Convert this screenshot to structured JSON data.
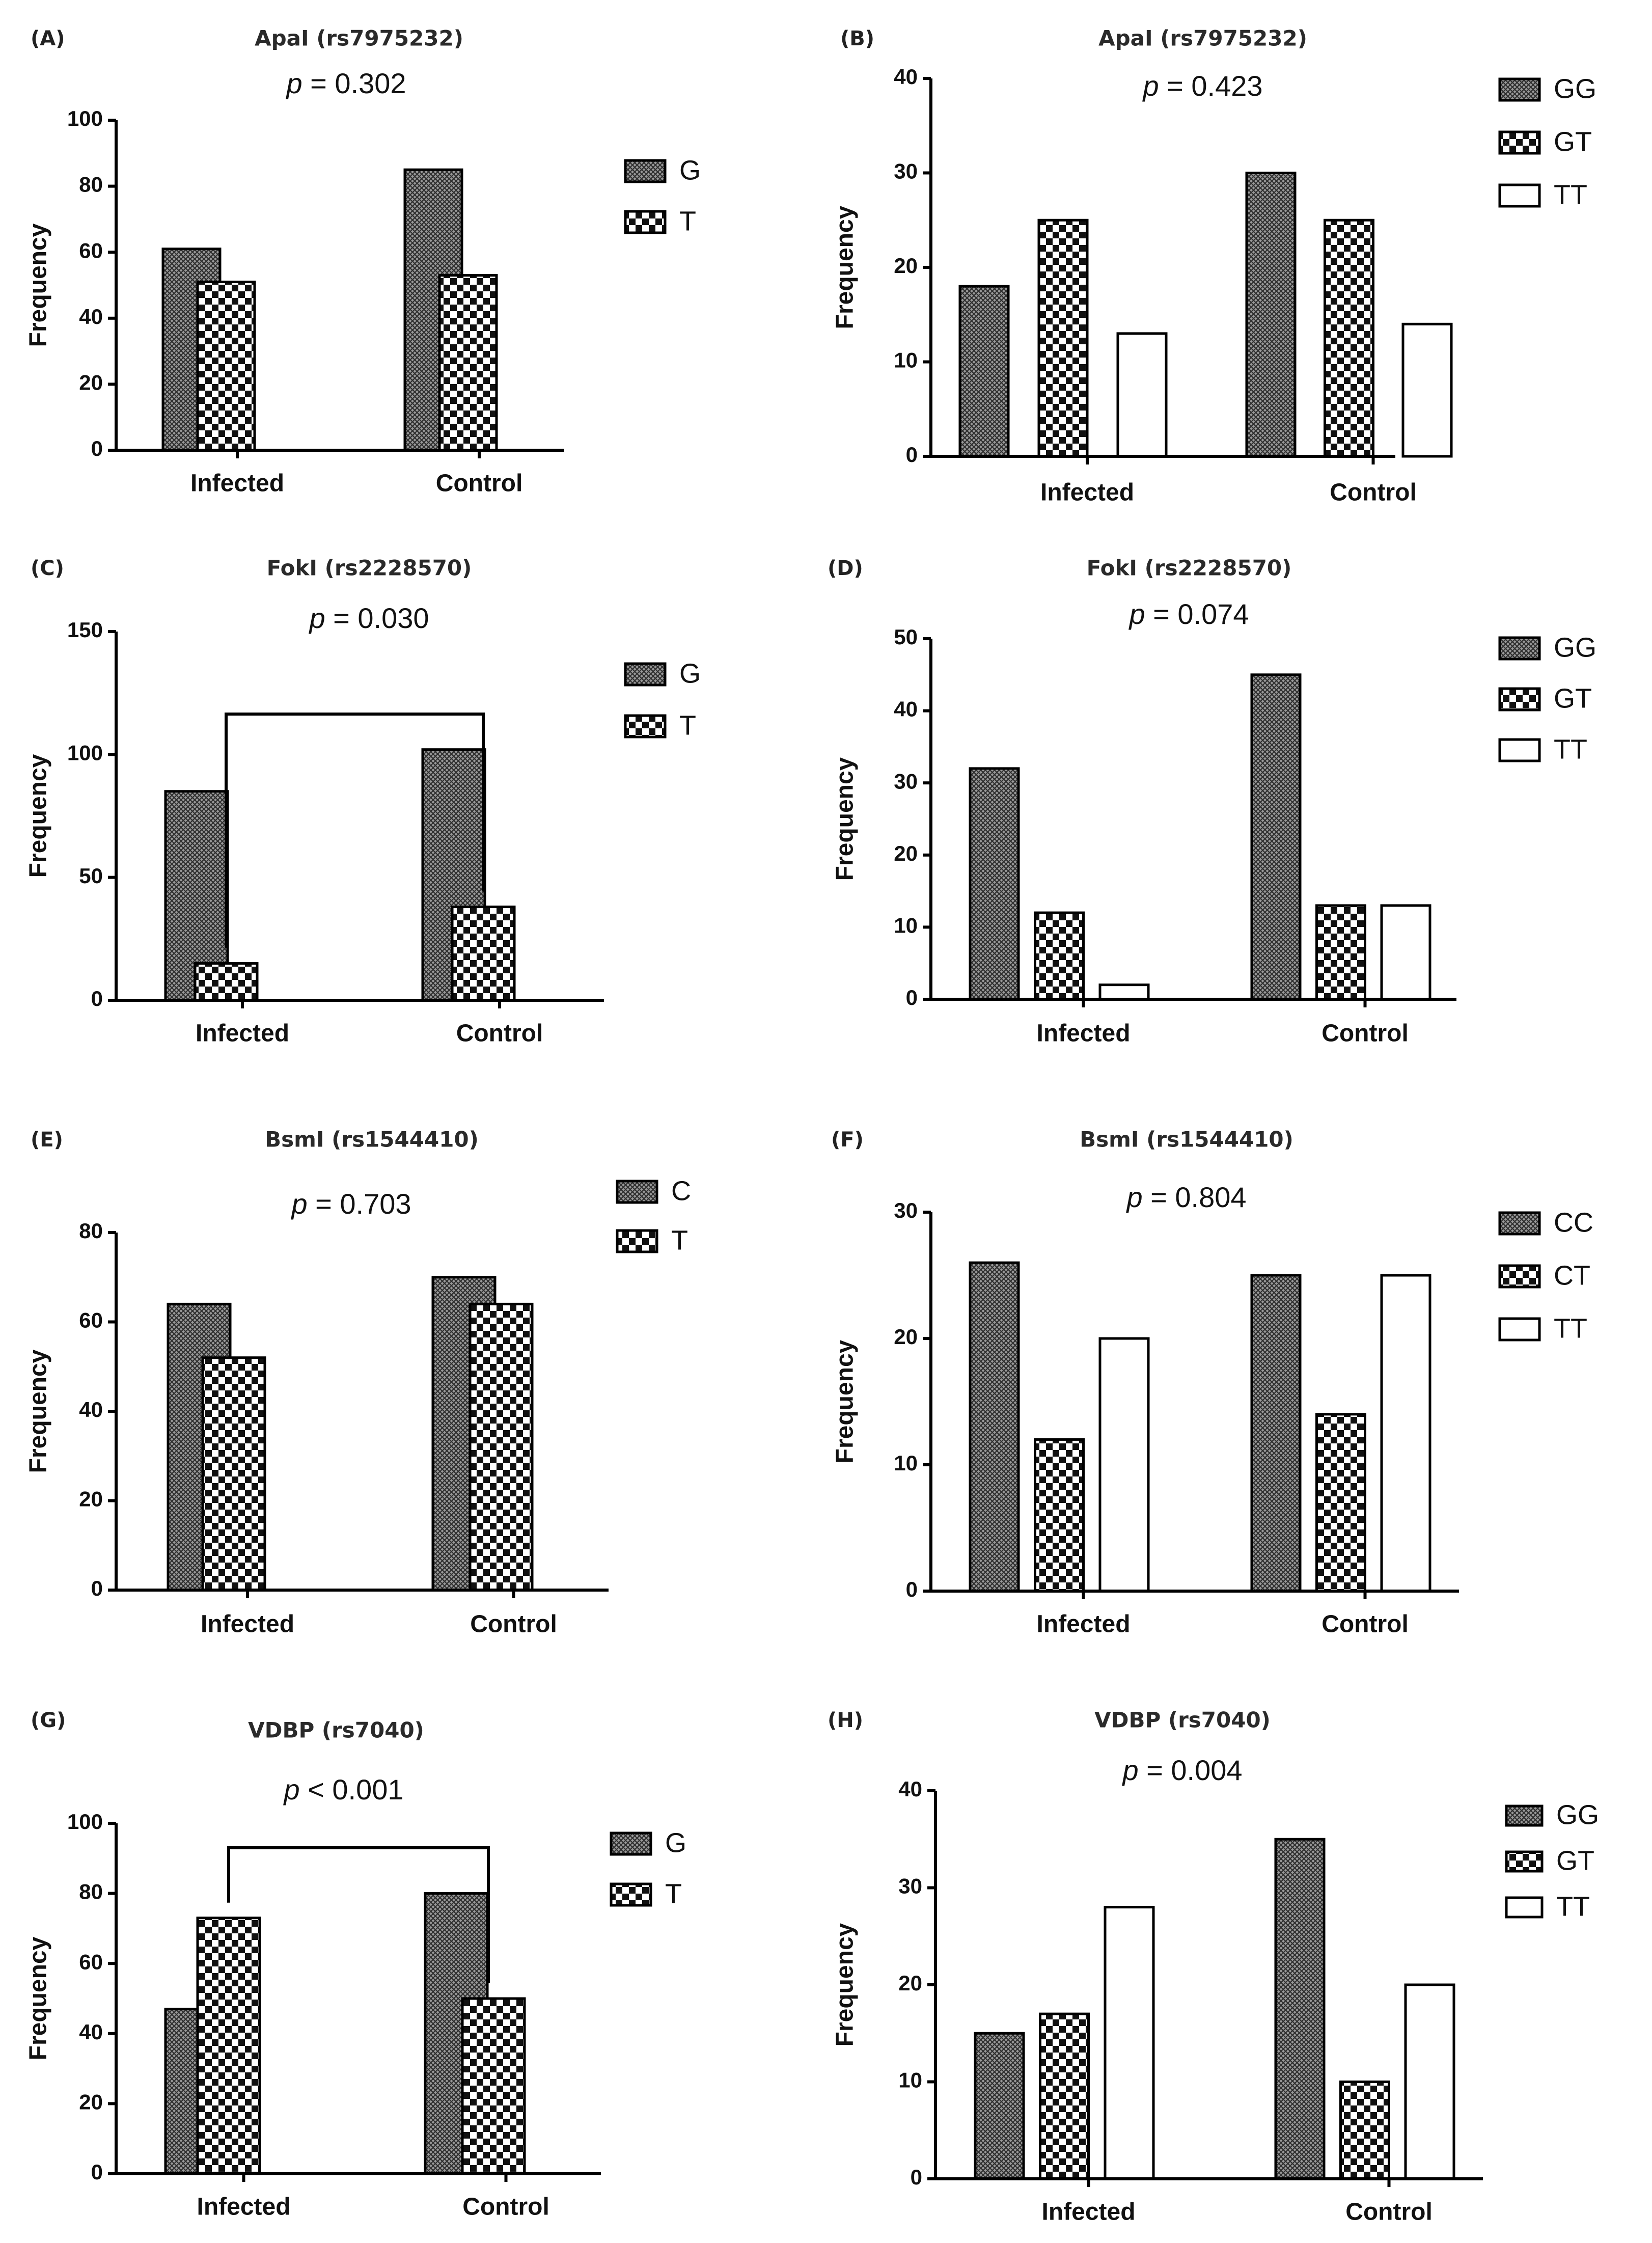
{
  "chart_data": [
    {
      "id": "A",
      "panel_label": "(A)",
      "type": "bar",
      "title": "ApaI (rs7975232)",
      "p_prefix": "p",
      "p_rest": " = 0.302",
      "ylabel": "Frequency",
      "xlabel": "",
      "ylim": [
        0,
        100
      ],
      "yticks": [
        0,
        20,
        40,
        60,
        80,
        100
      ],
      "categories": [
        "Infected",
        "Control"
      ],
      "series": [
        {
          "name": "G",
          "pattern": "dense",
          "values": [
            61,
            85
          ]
        },
        {
          "name": "T",
          "pattern": "checker",
          "values": [
            51,
            53
          ]
        }
      ],
      "significance_bracket": false
    },
    {
      "id": "B",
      "panel_label": "(B)",
      "type": "bar",
      "title": "ApaI (rs7975232)",
      "p_prefix": "p",
      "p_rest": " = 0.423",
      "ylabel": "Frequency",
      "xlabel": "",
      "ylim": [
        0,
        40
      ],
      "yticks": [
        0,
        10,
        20,
        30,
        40
      ],
      "categories": [
        "Infected",
        "Control"
      ],
      "series": [
        {
          "name": "GG",
          "pattern": "dense",
          "values": [
            18,
            30
          ]
        },
        {
          "name": "GT",
          "pattern": "checker",
          "values": [
            25,
            25
          ]
        },
        {
          "name": "TT",
          "pattern": "white",
          "values": [
            13,
            14
          ]
        }
      ],
      "significance_bracket": false
    },
    {
      "id": "C",
      "panel_label": "(C)",
      "type": "bar",
      "title": "FokI (rs2228570)",
      "p_prefix": "p",
      "p_rest": " = 0.030",
      "ylabel": "Frequency",
      "xlabel": "",
      "ylim": [
        0,
        150
      ],
      "yticks": [
        0,
        50,
        100,
        150
      ],
      "categories": [
        "Infected",
        "Control"
      ],
      "series": [
        {
          "name": "G",
          "pattern": "dense",
          "values": [
            85,
            102
          ]
        },
        {
          "name": "T",
          "pattern": "checker",
          "values": [
            15,
            38
          ]
        }
      ],
      "significance_bracket": true
    },
    {
      "id": "D",
      "panel_label": "(D)",
      "type": "bar",
      "title": "FokI (rs2228570)",
      "p_prefix": "p",
      "p_rest": " = 0.074",
      "ylabel": "Frequency",
      "xlabel": "",
      "ylim": [
        0,
        50
      ],
      "yticks": [
        0,
        10,
        20,
        30,
        40,
        50
      ],
      "categories": [
        "Infected",
        "Control"
      ],
      "series": [
        {
          "name": "GG",
          "pattern": "dense",
          "values": [
            32,
            45
          ]
        },
        {
          "name": "GT",
          "pattern": "checker",
          "values": [
            12,
            13
          ]
        },
        {
          "name": "TT",
          "pattern": "white",
          "values": [
            2,
            13
          ]
        }
      ],
      "significance_bracket": false
    },
    {
      "id": "E",
      "panel_label": "(E)",
      "type": "bar",
      "title": "BsmI (rs1544410)",
      "p_prefix": "p",
      "p_rest": " = 0.703",
      "ylabel": "Frequency",
      "xlabel": "",
      "ylim": [
        0,
        80
      ],
      "yticks": [
        0,
        20,
        40,
        60,
        80
      ],
      "categories": [
        "Infected",
        "Control"
      ],
      "series": [
        {
          "name": "C",
          "pattern": "dense",
          "values": [
            64,
            70
          ]
        },
        {
          "name": "T",
          "pattern": "checker",
          "values": [
            52,
            64
          ]
        }
      ],
      "significance_bracket": false
    },
    {
      "id": "F",
      "panel_label": "(F)",
      "type": "bar",
      "title": "BsmI (rs1544410)",
      "p_prefix": "p",
      "p_rest": " = 0.804",
      "ylabel": "Frequency",
      "xlabel": "",
      "ylim": [
        0,
        30
      ],
      "yticks": [
        0,
        10,
        20,
        30
      ],
      "categories": [
        "Infected",
        "Control"
      ],
      "series": [
        {
          "name": "CC",
          "pattern": "dense",
          "values": [
            26,
            25
          ]
        },
        {
          "name": "CT",
          "pattern": "checker",
          "values": [
            12,
            14
          ]
        },
        {
          "name": "TT",
          "pattern": "white",
          "values": [
            20,
            25
          ]
        }
      ],
      "significance_bracket": false
    },
    {
      "id": "G",
      "panel_label": "(G)",
      "type": "bar",
      "title": "VDBP (rs7040)",
      "p_prefix": "p",
      "p_rest": " < 0.001",
      "ylabel": "Frequency",
      "xlabel": "",
      "ylim": [
        0,
        100
      ],
      "yticks": [
        0,
        20,
        40,
        60,
        80,
        100
      ],
      "categories": [
        "Infected",
        "Control"
      ],
      "series": [
        {
          "name": "G",
          "pattern": "dense",
          "values": [
            47,
            80
          ]
        },
        {
          "name": "T",
          "pattern": "checker",
          "values": [
            73,
            50
          ]
        }
      ],
      "significance_bracket": true
    },
    {
      "id": "H",
      "panel_label": "(H)",
      "type": "bar",
      "title": "VDBP (rs7040)",
      "p_prefix": "p",
      "p_rest": " = 0.004",
      "ylabel": "Frequency",
      "xlabel": "",
      "ylim": [
        0,
        40
      ],
      "yticks": [
        0,
        10,
        20,
        30,
        40
      ],
      "categories": [
        "Infected",
        "Control"
      ],
      "series": [
        {
          "name": "GG",
          "pattern": "dense",
          "values": [
            15,
            35
          ]
        },
        {
          "name": "GT",
          "pattern": "checker",
          "values": [
            17,
            10
          ]
        },
        {
          "name": "TT",
          "pattern": "white",
          "values": [
            28,
            20
          ]
        }
      ],
      "significance_bracket": false
    }
  ]
}
